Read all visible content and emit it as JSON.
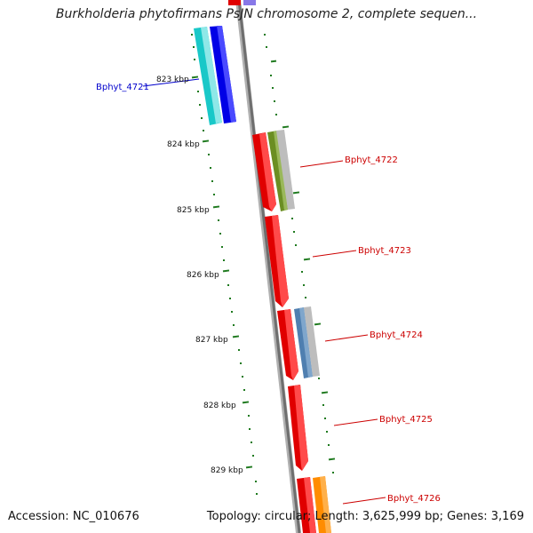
{
  "title": "Burkholderia phytofirmans PsJN chromosome 2, complete sequen...",
  "accession": "Accession: NC_010676",
  "footer_right": "Topology: circular; Length: 3,625,999 bp; Genes: 3,169",
  "colors": {
    "backbone": "#808080",
    "tick": "#1f7a1f",
    "gene_forward": "#ff0000",
    "label_red": "#cc0000",
    "label_blue": "#0000cc"
  },
  "ticks": [
    {
      "label": "823 kbp"
    },
    {
      "label": "824 kbp"
    },
    {
      "label": "825 kbp"
    },
    {
      "label": "826 kbp"
    },
    {
      "label": "827 kbp"
    },
    {
      "label": "828 kbp"
    },
    {
      "label": "829 kbp"
    }
  ],
  "genes": [
    {
      "name": "Bphyt_4721",
      "strand": "reverse",
      "label_color": "#0000cc"
    },
    {
      "name": "Bphyt_4722",
      "strand": "forward",
      "label_color": "#cc0000"
    },
    {
      "name": "Bphyt_4723",
      "strand": "forward",
      "label_color": "#cc0000"
    },
    {
      "name": "Bphyt_4724",
      "strand": "forward",
      "label_color": "#cc0000"
    },
    {
      "name": "Bphyt_4725",
      "strand": "forward",
      "label_color": "#cc0000"
    },
    {
      "name": "Bphyt_4726",
      "strand": "forward",
      "label_color": "#cc0000"
    }
  ]
}
